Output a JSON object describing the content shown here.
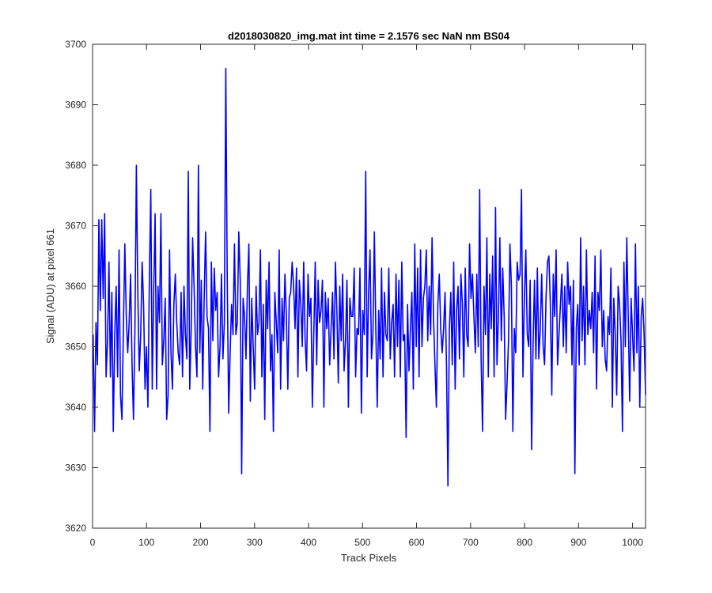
{
  "chart_data": {
    "type": "line",
    "title": "d2018030820_img.mat int time = 2.1576 sec  NaN nm BS04",
    "xlabel": "Track Pixels",
    "ylabel": "Signal (ADU) at pixel 661",
    "xlim": [
      0,
      1024
    ],
    "ylim": [
      3620,
      3700
    ],
    "xticks": [
      0,
      100,
      200,
      300,
      400,
      500,
      600,
      700,
      800,
      900,
      1000
    ],
    "yticks": [
      3620,
      3630,
      3640,
      3650,
      3660,
      3670,
      3680,
      3690,
      3700
    ],
    "grid": false,
    "line_color": "#0000ff",
    "series": [
      {
        "x_start": 1,
        "x_step": 1,
        "values": [
          3652,
          3636,
          3654,
          3647,
          3671,
          3656,
          3671,
          3658,
          3672,
          3645,
          3651,
          3664,
          3645,
          3659,
          3636,
          3652,
          3660,
          3645,
          3666,
          3642,
          3638,
          3653,
          3667,
          3655,
          3649,
          3654,
          3662,
          3647,
          3638,
          3653,
          3680,
          3659,
          3646,
          3652,
          3664,
          3657,
          3643,
          3650,
          3640,
          3661,
          3676,
          3643,
          3659,
          3672,
          3643,
          3660,
          3654,
          3672,
          3647,
          3651,
          3658,
          3638,
          3642,
          3666,
          3649,
          3643,
          3657,
          3662,
          3654,
          3649,
          3647,
          3659,
          3645,
          3660,
          3652,
          3648,
          3679,
          3643,
          3653,
          3668,
          3660,
          3650,
          3645,
          3680,
          3649,
          3661,
          3643,
          3658,
          3669,
          3655,
          3653,
          3636,
          3664,
          3651,
          3663,
          3656,
          3659,
          3645,
          3650,
          3662,
          3648,
          3654,
          3696,
          3661,
          3639,
          3649,
          3657,
          3652,
          3667,
          3652,
          3654,
          3669,
          3661,
          3629,
          3658,
          3655,
          3648,
          3660,
          3667,
          3641,
          3658,
          3650,
          3643,
          3660,
          3652,
          3654,
          3666,
          3645,
          3657,
          3638,
          3661,
          3653,
          3664,
          3646,
          3652,
          3636,
          3659,
          3654,
          3649,
          3666,
          3643,
          3658,
          3651,
          3662,
          3655,
          3643,
          3658,
          3659,
          3664,
          3660,
          3653,
          3663,
          3645,
          3661,
          3657,
          3650,
          3664,
          3651,
          3646,
          3662,
          3655,
          3658,
          3640,
          3652,
          3664,
          3647,
          3661,
          3654,
          3656,
          3661,
          3640,
          3659,
          3653,
          3658,
          3647,
          3653,
          3659,
          3648,
          3664,
          3656,
          3644,
          3660,
          3651,
          3662,
          3646,
          3651,
          3661,
          3640,
          3658,
          3655,
          3655,
          3663,
          3645,
          3653,
          3652,
          3663,
          3639,
          3656,
          3652,
          3679,
          3645,
          3659,
          3666,
          3648,
          3652,
          3669,
          3653,
          3640,
          3656,
          3648,
          3663,
          3645,
          3659,
          3652,
          3651,
          3663,
          3648,
          3654,
          3657,
          3645,
          3662,
          3650,
          3661,
          3645,
          3664,
          3651,
          3652,
          3635,
          3657,
          3646,
          3653,
          3659,
          3643,
          3667,
          3650,
          3663,
          3645,
          3666,
          3650,
          3658,
          3660,
          3666,
          3651,
          3660,
          3652,
          3668,
          3655,
          3647,
          3640,
          3657,
          3662,
          3653,
          3649,
          3653,
          3659,
          3647,
          3627,
          3653,
          3659,
          3647,
          3664,
          3643,
          3656,
          3660,
          3648,
          3662,
          3657,
          3645,
          3663,
          3652,
          3650,
          3667,
          3658,
          3662,
          3655,
          3649,
          3662,
          3650,
          3676,
          3648,
          3636,
          3660,
          3652,
          3668,
          3645,
          3662,
          3653,
          3665,
          3645,
          3673,
          3647,
          3655,
          3668,
          3651,
          3663,
          3655,
          3638,
          3644,
          3651,
          3667,
          3660,
          3636,
          3653,
          3649,
          3664,
          3661,
          3662,
          3676,
          3645,
          3658,
          3666,
          3652,
          3650,
          3661,
          3633,
          3650,
          3661,
          3648,
          3663,
          3648,
          3653,
          3662,
          3650,
          3647,
          3658,
          3664,
          3665,
          3657,
          3642,
          3662,
          3655,
          3666,
          3647,
          3652,
          3657,
          3662,
          3650,
          3660,
          3649,
          3664,
          3657,
          3660,
          3647,
          3661,
          3629,
          3653,
          3657,
          3647,
          3668,
          3651,
          3660,
          3647,
          3666,
          3652,
          3656,
          3653,
          3659,
          3649,
          3665,
          3643,
          3659,
          3656,
          3666,
          3650,
          3656,
          3648,
          3646,
          3655,
          3652,
          3663,
          3640,
          3658,
          3652,
          3642,
          3660,
          3657,
          3651,
          3636,
          3664,
          3650,
          3668,
          3655,
          3641,
          3658,
          3652,
          3646,
          3667,
          3649,
          3660,
          3640,
          3655,
          3658,
          3652,
          3642
        ]
      }
    ]
  }
}
